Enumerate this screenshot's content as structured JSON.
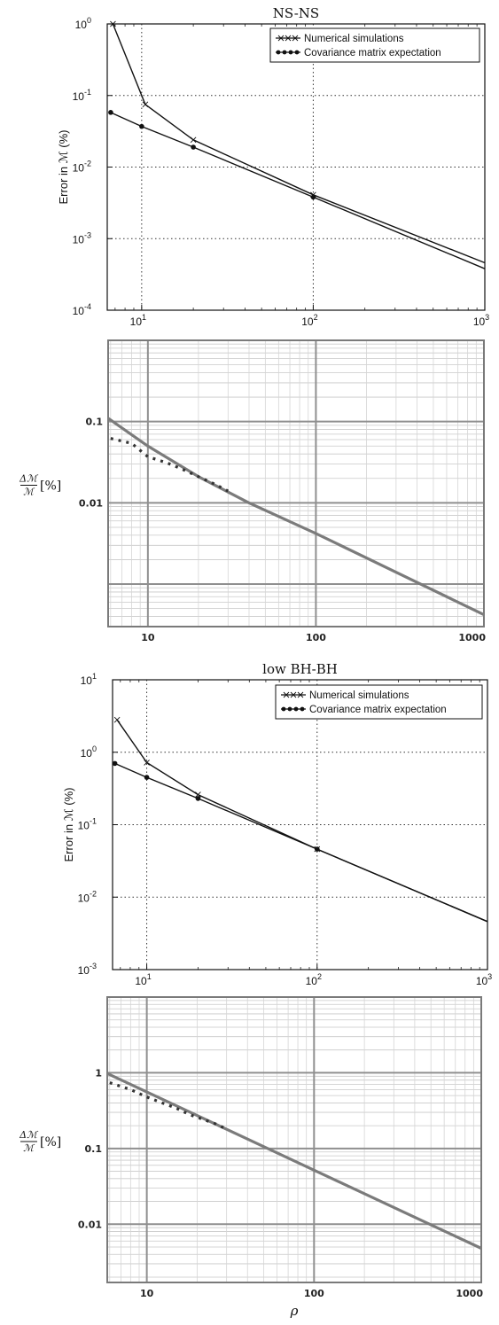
{
  "chart_data": [
    {
      "type": "line",
      "title": "NS-NS",
      "ylabel": "Error in ℳ (%)",
      "xlabel": "",
      "xscale": "log",
      "yscale": "log",
      "xlim": [
        6.3,
        1000
      ],
      "ylim": [
        0.0001,
        1
      ],
      "grid": "dotted, major decades",
      "legend_position": "top-right",
      "x_ticks": [
        {
          "value": 10,
          "base": "10",
          "exp": "1"
        },
        {
          "value": 100,
          "base": "10",
          "exp": "2"
        },
        {
          "value": 1000,
          "base": "10",
          "exp": "3"
        }
      ],
      "y_ticks": [
        {
          "value": 0.0001,
          "base": "10",
          "exp": "-4"
        },
        {
          "value": 0.001,
          "base": "10",
          "exp": "-3"
        },
        {
          "value": 0.01,
          "base": "10",
          "exp": "-2"
        },
        {
          "value": 0.1,
          "base": "10",
          "exp": "-1"
        },
        {
          "value": 1,
          "base": "10",
          "exp": "0"
        }
      ],
      "series": [
        {
          "name": "Numerical simulations",
          "style": "solid-x",
          "x": [
            6.8,
            10.5,
            20,
            100,
            1000
          ],
          "y": [
            1.0,
            0.075,
            0.024,
            0.0041,
            0.00046
          ]
        },
        {
          "name": "Covariance matrix expectation",
          "style": "solid-dot",
          "x": [
            6.6,
            10,
            20,
            100,
            1000
          ],
          "y": [
            0.058,
            0.037,
            0.019,
            0.0038,
            0.00038
          ]
        }
      ]
    },
    {
      "type": "line",
      "title": "",
      "ylabel": "Δℳ/ℳ [%]",
      "xlabel": "",
      "xscale": "log",
      "yscale": "log",
      "xlim": [
        5.8,
        1000
      ],
      "ylim": [
        0.0003,
        1
      ],
      "grid": "solid, minor",
      "x_ticks": [
        {
          "value": 10,
          "label": "10"
        },
        {
          "value": 100,
          "label": "100"
        },
        {
          "value": 1000,
          "label": "1000"
        }
      ],
      "y_ticks": [
        {
          "value": 0.1,
          "label": "0.1"
        },
        {
          "value": 0.01,
          "label": "0.01"
        }
      ],
      "y_bands": [
        0.1,
        0.01,
        0.001
      ],
      "series": [
        {
          "style": "thick-solid",
          "x": [
            5.8,
            10,
            20,
            40,
            100,
            1000
          ],
          "y": [
            0.11,
            0.05,
            0.021,
            0.01,
            0.0042,
            0.00042
          ]
        },
        {
          "style": "dotted",
          "x": [
            6,
            8,
            10,
            13,
            16,
            20,
            25,
            30
          ],
          "y": [
            0.062,
            0.054,
            0.037,
            0.031,
            0.026,
            0.021,
            0.017,
            0.014
          ]
        }
      ]
    },
    {
      "type": "line",
      "title": "low BH-BH",
      "ylabel": "Error in ℳ (%)",
      "xlabel": "",
      "xscale": "log",
      "yscale": "log",
      "xlim": [
        6.3,
        1000
      ],
      "ylim": [
        0.001,
        10
      ],
      "grid": "dotted, major decades",
      "legend_position": "top-right",
      "x_ticks": [
        {
          "value": 10,
          "base": "10",
          "exp": "1"
        },
        {
          "value": 100,
          "base": "10",
          "exp": "2"
        },
        {
          "value": 1000,
          "base": "10",
          "exp": "3"
        }
      ],
      "y_ticks": [
        {
          "value": 0.001,
          "base": "10",
          "exp": "-3"
        },
        {
          "value": 0.01,
          "base": "10",
          "exp": "-2"
        },
        {
          "value": 0.1,
          "base": "10",
          "exp": "-1"
        },
        {
          "value": 1,
          "base": "10",
          "exp": "0"
        },
        {
          "value": 10,
          "base": "10",
          "exp": "1"
        }
      ],
      "series": [
        {
          "name": "Numerical simulations",
          "style": "solid-x",
          "x": [
            6.7,
            10,
            20,
            100,
            1000
          ],
          "y": [
            2.8,
            0.72,
            0.26,
            0.046,
            0.0046
          ]
        },
        {
          "name": "Covariance matrix expectation",
          "style": "solid-dot",
          "x": [
            6.5,
            10,
            20,
            100,
            1000
          ],
          "y": [
            0.7,
            0.45,
            0.23,
            0.046,
            0.0046
          ]
        }
      ]
    },
    {
      "type": "line",
      "title": "",
      "ylabel": "Δℳ/ℳ [%]",
      "xlabel": "ρ",
      "xscale": "log",
      "yscale": "log",
      "xlim": [
        5.8,
        1000
      ],
      "ylim": [
        0.0017,
        10
      ],
      "grid": "solid, minor",
      "x_ticks": [
        {
          "value": 10,
          "label": "10"
        },
        {
          "value": 100,
          "label": "100"
        },
        {
          "value": 1000,
          "label": "1000"
        }
      ],
      "y_ticks": [
        {
          "value": 1,
          "label": "1"
        },
        {
          "value": 0.1,
          "label": "0.1"
        },
        {
          "value": 0.01,
          "label": "0.01"
        }
      ],
      "y_bands": [
        1,
        0.1,
        0.01
      ],
      "series": [
        {
          "style": "thick-solid",
          "x": [
            5.8,
            1000
          ],
          "y": [
            0.98,
            0.0048
          ]
        },
        {
          "style": "dotted",
          "x": [
            6,
            8,
            10,
            12,
            15,
            18,
            22,
            26,
            30
          ],
          "y": [
            0.74,
            0.6,
            0.48,
            0.41,
            0.34,
            0.28,
            0.24,
            0.21,
            0.18
          ]
        }
      ]
    }
  ]
}
